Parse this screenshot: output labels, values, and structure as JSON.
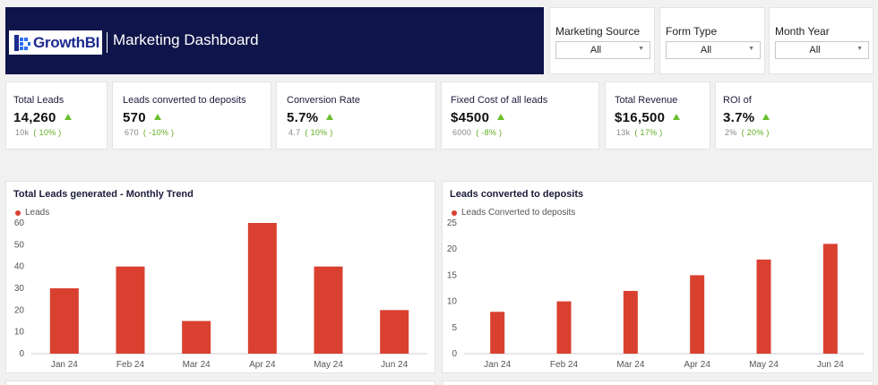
{
  "header": {
    "logo_text": "GrowthBI",
    "title": "Marketing Dashboard"
  },
  "filters": [
    {
      "label": "Marketing Source",
      "value": "All"
    },
    {
      "label": "Form Type",
      "value": "All"
    },
    {
      "label": "Month Year",
      "value": "All"
    }
  ],
  "kpis": [
    {
      "label": "Total Leads",
      "value": "14,260",
      "prev": "10k",
      "pct": "( 10% )"
    },
    {
      "label": "Leads converted to deposits",
      "value": "570",
      "prev": "670",
      "pct": "( -10% )"
    },
    {
      "label": "Conversion Rate",
      "value": "5.7%",
      "prev": "4.7",
      "pct": "( 10% )"
    },
    {
      "label": "Fixed Cost of all leads",
      "value": "$4500",
      "prev": "6000",
      "pct": "( -8% )"
    },
    {
      "label": "Total Revenue",
      "value": "$16,500",
      "prev": "13k",
      "pct": "( 17% )"
    },
    {
      "label": "ROI of",
      "value": "3.7%",
      "prev": "2%",
      "pct": "( 20% )"
    }
  ],
  "colors": {
    "header_bg": "#0f154a",
    "bar": "#d94030",
    "up_arrow": "#6abf2d",
    "pct_text": "#5fae1f"
  },
  "chart_data": [
    {
      "type": "bar",
      "title": "Total Leads generated - Monthly Trend",
      "categories": [
        "Jan 24",
        "Feb 24",
        "Mar 24",
        "Apr 24",
        "May 24",
        "Jun 24"
      ],
      "series": [
        {
          "name": "Leads",
          "values": [
            30,
            40,
            15,
            60,
            40,
            20
          ]
        }
      ],
      "ylim": [
        0,
        60
      ],
      "yticks": [
        0,
        10,
        20,
        30,
        40,
        50,
        60
      ],
      "legend": "top-left",
      "grid": false
    },
    {
      "type": "bar",
      "title": "Leads converted to deposits",
      "categories": [
        "Jan 24",
        "Feb 24",
        "Mar 24",
        "Apr 24",
        "May 24",
        "Jun 24"
      ],
      "series": [
        {
          "name": "Leads Converted to deposits",
          "values": [
            8,
            10,
            12,
            15,
            18,
            21
          ]
        }
      ],
      "ylim": [
        0,
        25
      ],
      "yticks": [
        0,
        5,
        10,
        15,
        20,
        25
      ],
      "legend": "top-left",
      "grid": false
    }
  ]
}
